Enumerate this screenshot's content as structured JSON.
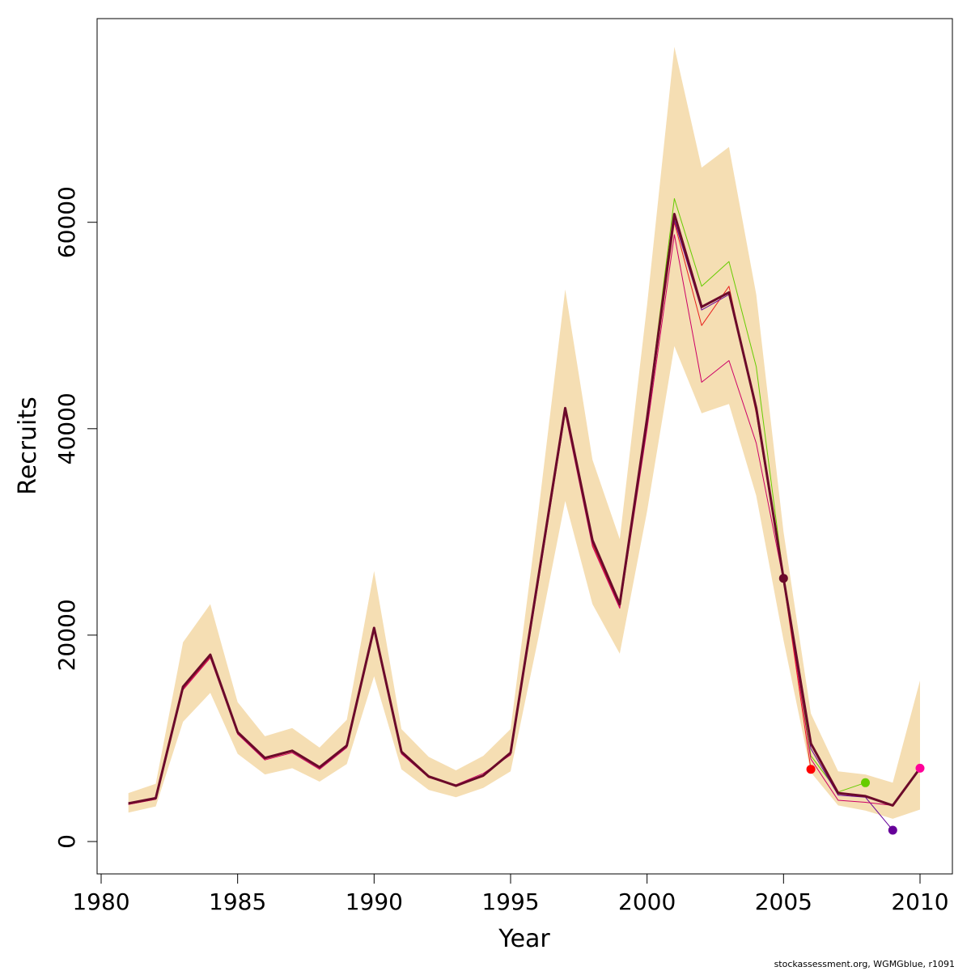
{
  "chart_data": {
    "type": "line",
    "xlabel": "Year",
    "ylabel": "Recruits",
    "xlim": [
      1980,
      2010
    ],
    "ylim": [
      0,
      80000
    ],
    "x_ticks": [
      1980,
      1985,
      1990,
      1995,
      2000,
      2005,
      2010
    ],
    "y_ticks": [
      0,
      20000,
      40000,
      60000
    ],
    "grid": false,
    "legend": "none",
    "band": {
      "color": "#f5deb3",
      "years": [
        1981,
        1982,
        1983,
        1984,
        1985,
        1986,
        1987,
        1988,
        1989,
        1990,
        1991,
        1992,
        1993,
        1994,
        1995,
        1996,
        1997,
        1998,
        1999,
        2000,
        2001,
        2002,
        2003,
        2004,
        2005,
        2006,
        2007,
        2008,
        2009,
        2010
      ],
      "upper": [
        4700,
        5600,
        19300,
        23000,
        13500,
        10200,
        11000,
        9100,
        11800,
        26200,
        10900,
        8200,
        6900,
        8300,
        10900,
        31500,
        53500,
        37000,
        29300,
        52000,
        77000,
        65300,
        67300,
        53000,
        30000,
        12400,
        6800,
        6500,
        5700,
        15600
      ],
      "lower": [
        2800,
        3400,
        11600,
        14400,
        8500,
        6500,
        7100,
        5800,
        7500,
        16000,
        7000,
        5000,
        4300,
        5200,
        6800,
        19500,
        33000,
        23000,
        18200,
        32000,
        48000,
        41500,
        42400,
        33500,
        19500,
        6700,
        3500,
        3000,
        2200,
        3100
      ]
    },
    "series": [
      {
        "role": "main",
        "color": "#6b0a2a",
        "x": [
          1981,
          1982,
          1983,
          1984,
          1985,
          1986,
          1987,
          1988,
          1989,
          1990,
          1991,
          1992,
          1993,
          1994,
          1995,
          1996,
          1997,
          1998,
          1999,
          2000,
          2001,
          2002,
          2003,
          2004,
          2005,
          2006,
          2007,
          2008,
          2009,
          2010
        ],
        "y": [
          3700,
          4200,
          15000,
          18100,
          10600,
          8100,
          8800,
          7200,
          9300,
          20700,
          8700,
          6300,
          5400,
          6400,
          8600,
          25300,
          42000,
          29200,
          23000,
          41000,
          60800,
          51800,
          53200,
          42000,
          25500,
          9500,
          4700,
          4400,
          3500,
          7100
        ]
      },
      {
        "role": "retro",
        "color": "#e8211e",
        "x": [
          1981,
          1982,
          1983,
          1984,
          1985,
          1986,
          1987,
          1988,
          1989,
          1990,
          1991,
          1992,
          1993,
          1994,
          1995,
          1996,
          1997,
          1998,
          1999,
          2000,
          2001,
          2002,
          2003,
          2004,
          2005,
          2006
        ],
        "y": [
          3600,
          4100,
          14800,
          17900,
          10500,
          8000,
          8700,
          7100,
          9200,
          20500,
          8600,
          6200,
          5400,
          6300,
          8500,
          25000,
          41600,
          28800,
          22700,
          40500,
          60000,
          50000,
          53800,
          41500,
          25300,
          7000
        ]
      },
      {
        "role": "retro",
        "color": "#66cc00",
        "x": [
          1981,
          1982,
          1983,
          1984,
          1985,
          1986,
          1987,
          1988,
          1989,
          1990,
          1991,
          1992,
          1993,
          1994,
          1995,
          1996,
          1997,
          1998,
          1999,
          2000,
          2001,
          2002,
          2003,
          2004,
          2005,
          2006,
          2007,
          2008
        ],
        "y": [
          3650,
          4150,
          14900,
          18000,
          10550,
          8050,
          8750,
          7150,
          9250,
          20600,
          8650,
          6250,
          5400,
          6350,
          8550,
          25200,
          41900,
          29100,
          23200,
          41200,
          62300,
          53800,
          56200,
          46000,
          25600,
          8300,
          4800,
          5700
        ]
      },
      {
        "role": "retro",
        "color": "#660099",
        "x": [
          1981,
          1982,
          1983,
          1984,
          1985,
          1986,
          1987,
          1988,
          1989,
          1990,
          1991,
          1992,
          1993,
          1994,
          1995,
          1996,
          1997,
          1998,
          1999,
          2000,
          2001,
          2002,
          2003,
          2004,
          2005,
          2006,
          2007,
          2008,
          2009
        ],
        "y": [
          3650,
          4150,
          14900,
          18000,
          10550,
          8050,
          8750,
          7150,
          9250,
          20600,
          8650,
          6250,
          5400,
          6350,
          8550,
          25100,
          41800,
          29000,
          22900,
          40800,
          60200,
          51500,
          53000,
          41800,
          25400,
          9000,
          4500,
          4300,
          1100
        ]
      },
      {
        "role": "retro",
        "color": "#cc0066",
        "x": [
          1981,
          1982,
          1983,
          1984,
          1985,
          1986,
          1987,
          1988,
          1989,
          1990,
          1991,
          1992,
          1993,
          1994,
          1995,
          1996,
          1997,
          1998,
          1999,
          2000,
          2001,
          2002,
          2003,
          2004,
          2005,
          2006,
          2007,
          2008,
          2009,
          2010
        ],
        "y": [
          3600,
          4100,
          14700,
          17800,
          10400,
          7900,
          8600,
          7000,
          9100,
          20400,
          8500,
          6200,
          5500,
          6600,
          8400,
          24800,
          41500,
          28600,
          22600,
          40000,
          58800,
          44500,
          46600,
          38600,
          25300,
          8000,
          4000,
          3800,
          3500,
          7100
        ]
      }
    ],
    "points": [
      {
        "x": 2005,
        "y": 25500,
        "color": "#6b0a2a"
      },
      {
        "x": 2006,
        "y": 7000,
        "color": "#ff0000"
      },
      {
        "x": 2008,
        "y": 5700,
        "color": "#66cc00"
      },
      {
        "x": 2009,
        "y": 1100,
        "color": "#660099"
      },
      {
        "x": 2010,
        "y": 7100,
        "color": "#ff0099"
      }
    ]
  },
  "footer_text": "stockassessment.org, WGMGblue, r1091"
}
